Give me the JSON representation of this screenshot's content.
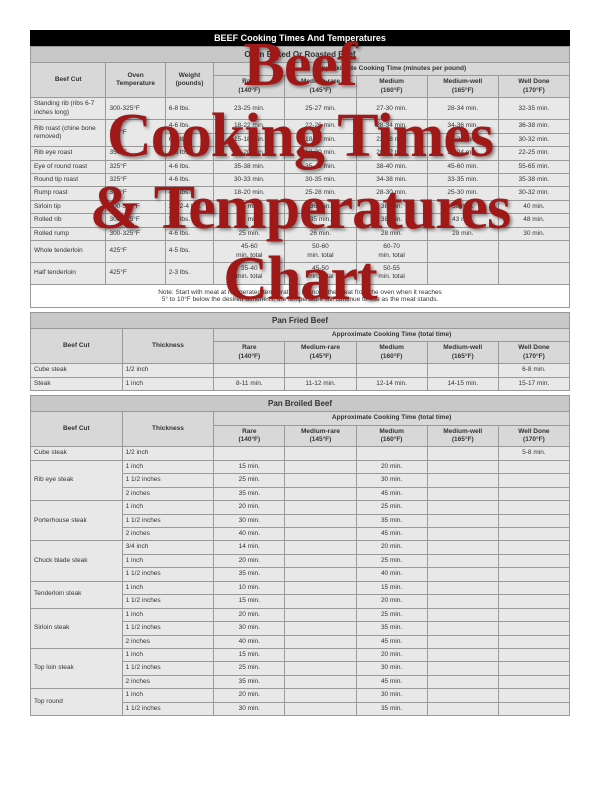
{
  "title": "BEEF Cooking Times And Temperatures",
  "overlay": "Beef\nCooking Times\n& Temperatures\nChart",
  "section1": {
    "name": "Oven Baked Or Roasted Beef",
    "col_beef": "Beef Cut",
    "col_temp": "Oven\nTemperature",
    "col_weight": "Weight\n(pounds)",
    "group": "Approximate Cooking Time (minutes per pound)",
    "headers": [
      "Rare\n(140°F)",
      "Medium-rare\n(145°F)",
      "Medium\n(160°F)",
      "Medium-well\n(165°F)",
      "Well Done\n(170°F)"
    ],
    "rows": [
      {
        "cut": "Standing rib (ribs 6-7 inches long)",
        "temp": "300-325°F",
        "wt": "6-8 lbs.",
        "t": [
          "23-25 min.",
          "25-27 min.",
          "27-30 min.",
          "28-34 min.",
          "32-35 min."
        ]
      },
      {
        "cut": "Rib roast (chine bone removed)",
        "temp": "350°F",
        "wt": "4-6 lbs.",
        "t": [
          "18-22 min.",
          "22-26 min.",
          "28-34 min.",
          "34-36 min.",
          "36-38 min."
        ],
        "span": 2
      },
      {
        "cut": "",
        "temp": "",
        "wt": "6-8 lbs.",
        "t": [
          "15-18 min.",
          "18-22 min.",
          "22-28 min.",
          "28-30 min.",
          "30-32 min."
        ]
      },
      {
        "cut": "Rib eye roast",
        "temp": "350°F",
        "wt": "4-6 lbs.",
        "t": [
          "18-20 min.",
          "18-20 min.",
          "20-22 min.",
          "22-24 min.",
          "22-25 min."
        ]
      },
      {
        "cut": "Eye of round roast",
        "temp": "325°F",
        "wt": "4-6 lbs.",
        "t": [
          "35-38 min.",
          "35-45 min.",
          "38-40 min.",
          "45-60 min.",
          "55-65 min."
        ]
      },
      {
        "cut": "Round tip roast",
        "temp": "325°F",
        "wt": "4-6 lbs.",
        "t": [
          "30-33 min.",
          "30-35 min.",
          "34-38 min.",
          "33-35 min.",
          "35-38 min."
        ]
      },
      {
        "cut": "Rump roast",
        "temp": "325°F",
        "wt": "4-6 lbs.",
        "t": [
          "18-20 min.",
          "25-28 min.",
          "28-30 min.",
          "25-30 min.",
          "30-32 min."
        ]
      },
      {
        "cut": "Sirloin tip",
        "temp": "300-325°F",
        "wt": "3 1/2-4 lbs.",
        "t": [
          "35 min.",
          "36 min.",
          "38 min.",
          "39 min.",
          "40 min."
        ]
      },
      {
        "cut": "Rolled rib",
        "temp": "300-325°F",
        "wt": "5-7 lbs.",
        "t": [
          "32 min.",
          "35 min.",
          "38 min.",
          "43 min.",
          "48 min."
        ]
      },
      {
        "cut": "Rolled rump",
        "temp": "300-325°F",
        "wt": "4-6 lbs.",
        "t": [
          "25 min.",
          "26 min.",
          "28 min.",
          "29 min.",
          "30 min."
        ]
      },
      {
        "cut": "Whole tenderloin",
        "temp": "425°F",
        "wt": "4-5 lbs.",
        "t": [
          "45-60\nmin. total",
          "50-60\nmin. total",
          "60-70\nmin. total",
          "",
          ""
        ]
      },
      {
        "cut": "Half tenderloin",
        "temp": "425°F",
        "wt": "2-3 lbs.",
        "t": [
          "35-40\nmin. total",
          "45-50\nmin. total",
          "50-55\nmin. total",
          "",
          ""
        ]
      }
    ],
    "note": "Note: Start with meat at refrigerated temperature. Remove the meat from the oven when it reaches\n5° to 10°F below the desired doneness; the temperature will continue to rise as the meat stands."
  },
  "section2": {
    "name": "Pan Fried Beef",
    "col_beef": "Beef Cut",
    "col_thick": "Thickness",
    "group": "Approximate Cooking Time (total time)",
    "headers": [
      "Rare\n(140°F)",
      "Medium-rare\n(145°F)",
      "Medium\n(160°F)",
      "Medium-well\n(165°F)",
      "Well Done\n(170°F)"
    ],
    "rows": [
      {
        "cut": "Cube steak",
        "th": "1/2 inch",
        "t": [
          "",
          "",
          "",
          "",
          "6-8 min."
        ]
      },
      {
        "cut": "Steak",
        "th": "1 inch",
        "t": [
          "8-11 min.",
          "11-12 min.",
          "12-14 min.",
          "14-15 min.",
          "15-17 min."
        ]
      }
    ]
  },
  "section3": {
    "name": "Pan Broiled Beef",
    "col_beef": "Beef Cut",
    "col_thick": "Thickness",
    "group": "Approximate Cooking Time (total time)",
    "headers": [
      "Rare\n(140°F)",
      "Medium-rare\n(145°F)",
      "Medium\n(160°F)",
      "Medium-well\n(165°F)",
      "Well Done\n(170°F)"
    ],
    "rows": [
      {
        "cut": "Cube steak",
        "th": "1/2 inch",
        "t": [
          "",
          "",
          "",
          "",
          "5-8 min."
        ]
      },
      {
        "cut": "Rib eye steak",
        "th": "1 inch",
        "t": [
          "15 min.",
          "",
          "20 min.",
          "",
          ""
        ],
        "span": 3
      },
      {
        "cut": "",
        "th": "1 1/2 inches",
        "t": [
          "25 min.",
          "",
          "30 min.",
          "",
          ""
        ]
      },
      {
        "cut": "",
        "th": "2 inches",
        "t": [
          "35 min.",
          "",
          "45 min.",
          "",
          ""
        ]
      },
      {
        "cut": "Porterhouse steak",
        "th": "1 inch",
        "t": [
          "20 min.",
          "",
          "25 min.",
          "",
          ""
        ],
        "span": 3
      },
      {
        "cut": "",
        "th": "1 1/2 inches",
        "t": [
          "30 min.",
          "",
          "35 min.",
          "",
          ""
        ]
      },
      {
        "cut": "",
        "th": "2 inches",
        "t": [
          "40 min.",
          "",
          "45 min.",
          "",
          ""
        ]
      },
      {
        "cut": "Chuck blade steak",
        "th": "3/4 inch",
        "t": [
          "14 min.",
          "",
          "20 min.",
          "",
          ""
        ],
        "span": 3
      },
      {
        "cut": "",
        "th": "1 inch",
        "t": [
          "20 min.",
          "",
          "25 min.",
          "",
          ""
        ]
      },
      {
        "cut": "",
        "th": "1 1/2 inches",
        "t": [
          "35 min.",
          "",
          "40 min.",
          "",
          ""
        ]
      },
      {
        "cut": "Tenderloin steak",
        "th": "1 inch",
        "t": [
          "10 min.",
          "",
          "15 min.",
          "",
          ""
        ],
        "span": 2
      },
      {
        "cut": "",
        "th": "1 1/2 inches",
        "t": [
          "15 min.",
          "",
          "20 min.",
          "",
          ""
        ]
      },
      {
        "cut": "Sirloin steak",
        "th": "1 inch",
        "t": [
          "20 min.",
          "",
          "25 min.",
          "",
          ""
        ],
        "span": 3
      },
      {
        "cut": "",
        "th": "1 1/2 inches",
        "t": [
          "30 min.",
          "",
          "35 min.",
          "",
          ""
        ]
      },
      {
        "cut": "",
        "th": "2 inches",
        "t": [
          "40 min.",
          "",
          "45 min.",
          "",
          ""
        ]
      },
      {
        "cut": "Top loin steak",
        "th": "1 inch",
        "t": [
          "15 min.",
          "",
          "20 min.",
          "",
          ""
        ],
        "span": 3
      },
      {
        "cut": "",
        "th": "1 1/2 inches",
        "t": [
          "25 min.",
          "",
          "30 min.",
          "",
          ""
        ]
      },
      {
        "cut": "",
        "th": "2 inches",
        "t": [
          "35 min.",
          "",
          "45 min.",
          "",
          ""
        ]
      },
      {
        "cut": "Top round",
        "th": "1 inch",
        "t": [
          "20 min.",
          "",
          "30 min.",
          "",
          ""
        ],
        "span": 2
      },
      {
        "cut": "",
        "th": "1 1/2 inches",
        "t": [
          "30 min.",
          "",
          "35 min.",
          "",
          ""
        ]
      }
    ]
  }
}
